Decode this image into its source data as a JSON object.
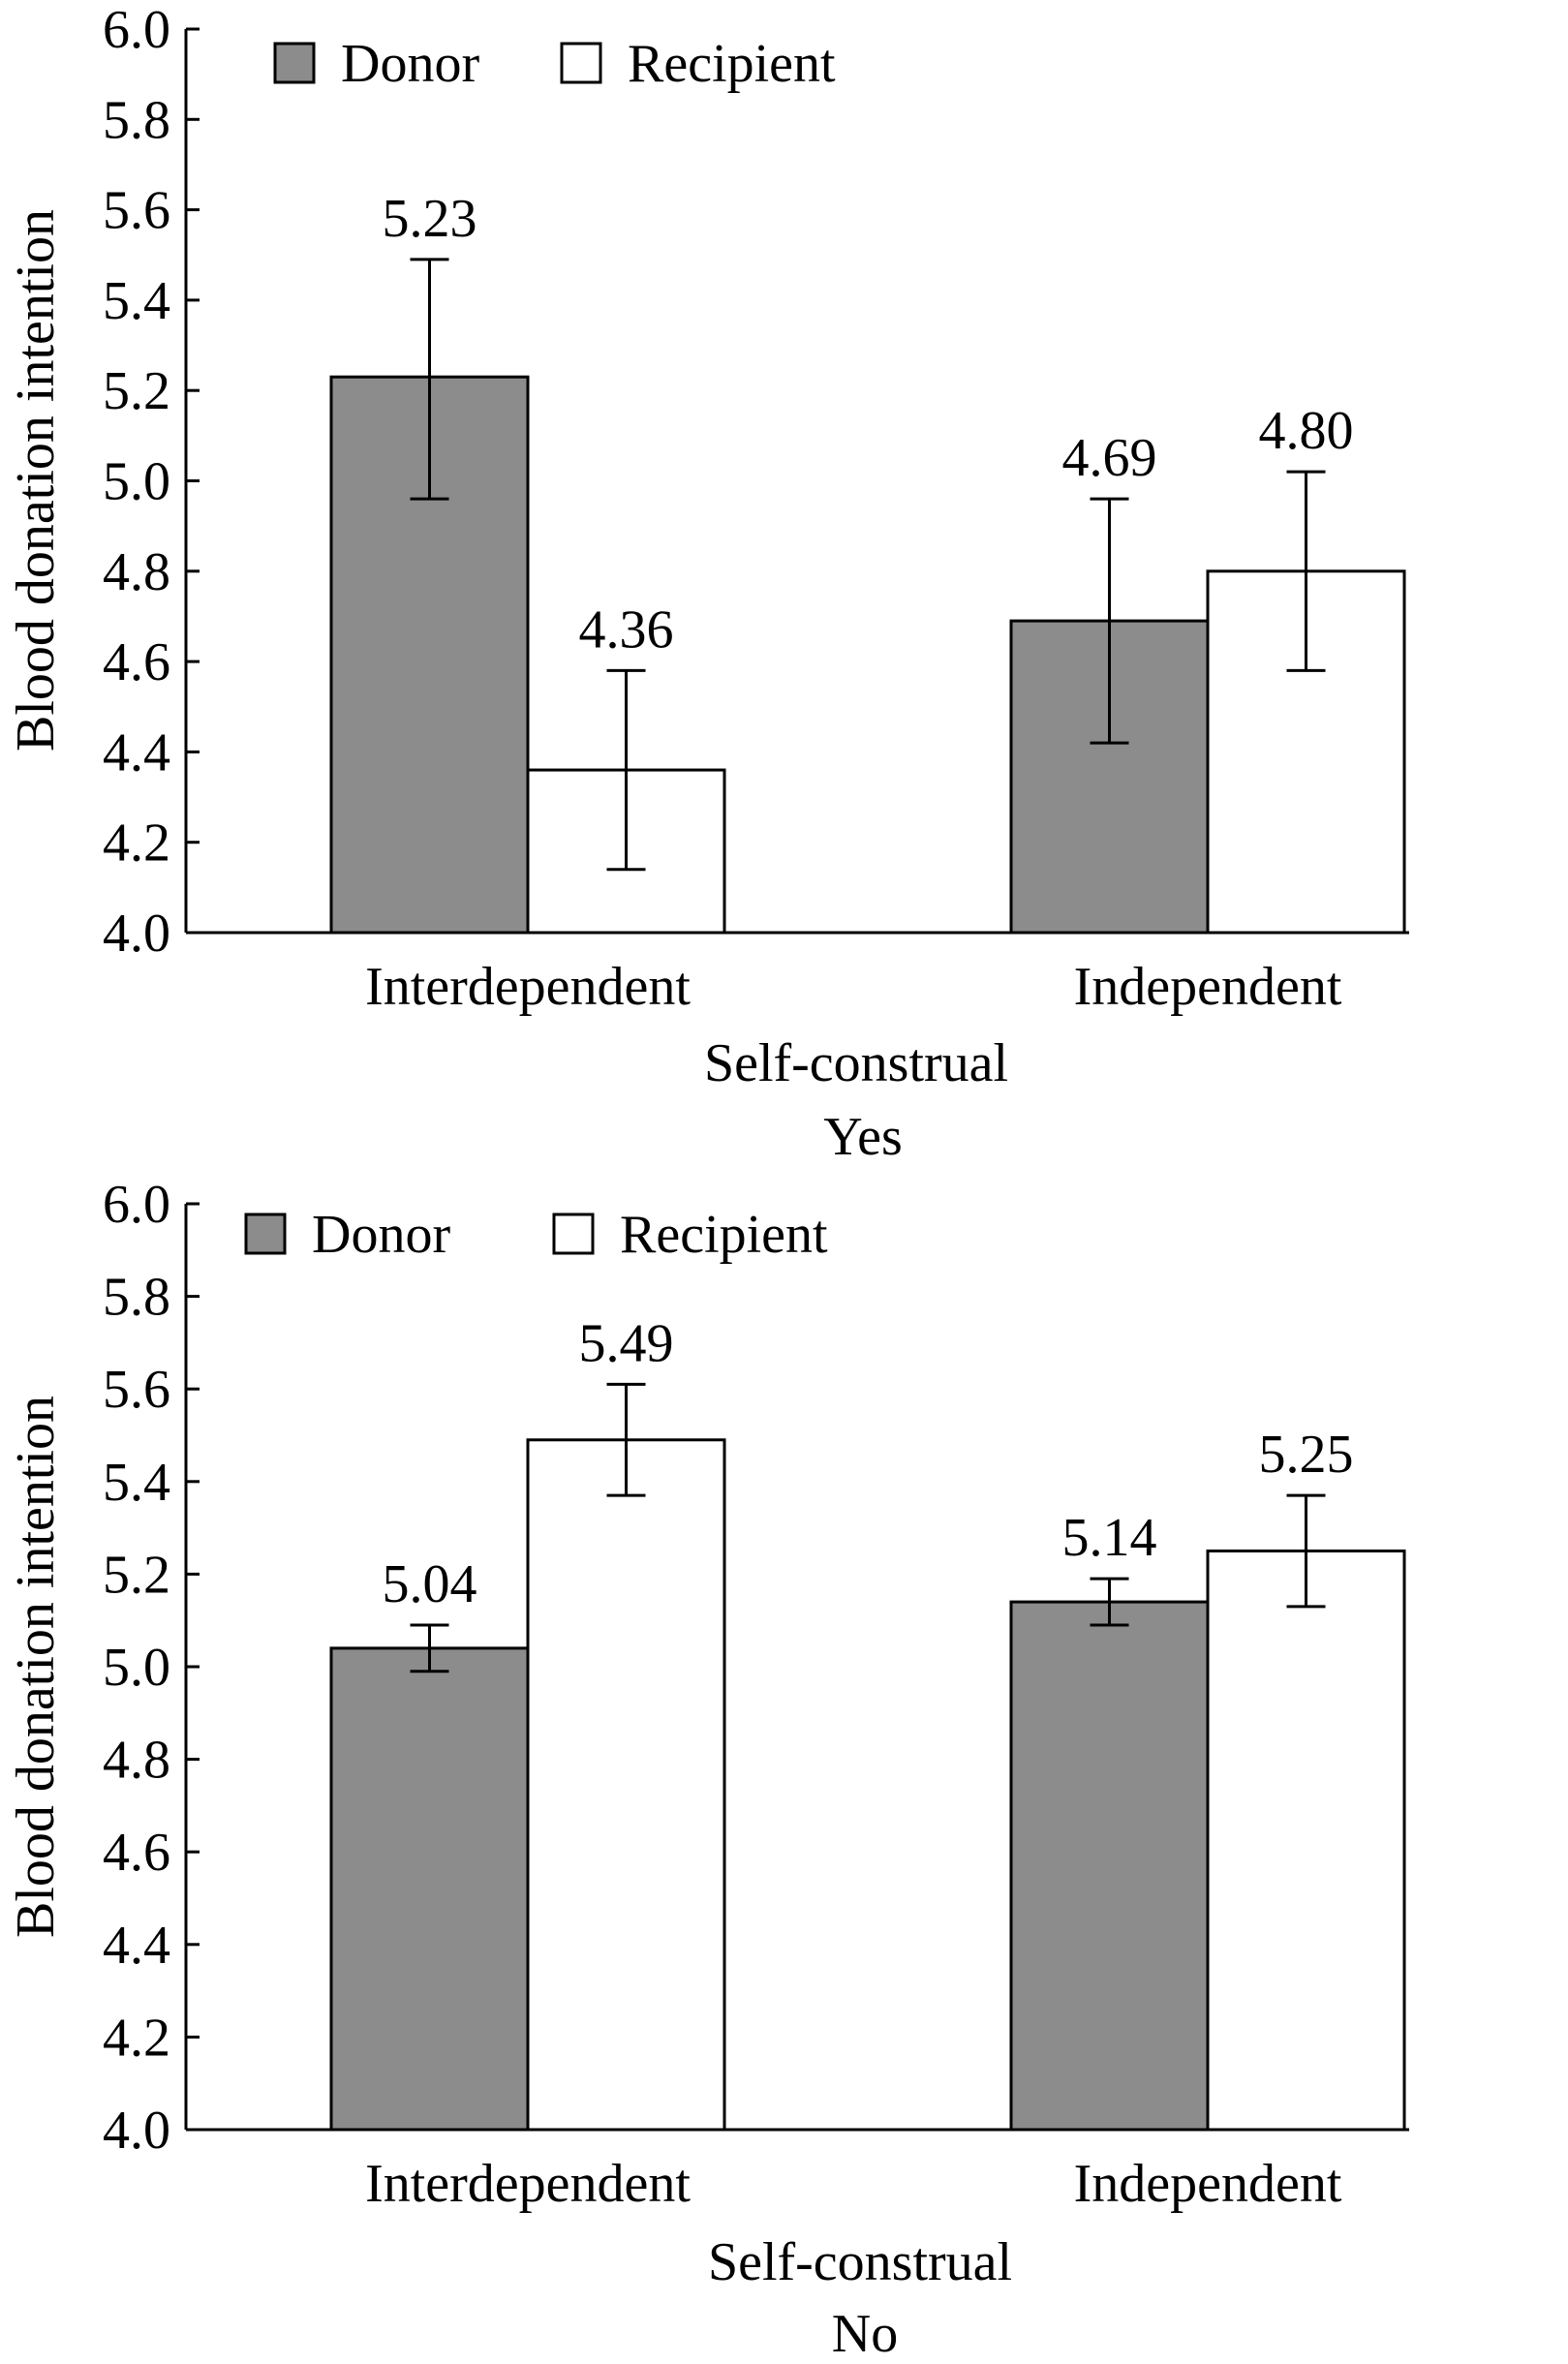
{
  "chart_data": [
    {
      "type": "bar",
      "caption": "Yes",
      "xlabel": "Self-construal",
      "ylabel": "Blood donation intention",
      "ylim": [
        4.0,
        6.0
      ],
      "yticks": [
        "4.0",
        "4.2",
        "4.4",
        "4.6",
        "4.8",
        "5.0",
        "5.2",
        "5.4",
        "5.6",
        "5.8",
        "6.0"
      ],
      "categories": [
        "Interdependent",
        "Independent"
      ],
      "series": [
        {
          "name": "Donor",
          "color": "#8c8c8c",
          "values": [
            5.23,
            4.69
          ],
          "labels": [
            "5.23",
            "4.69"
          ],
          "err_low": [
            4.96,
            4.42
          ],
          "err_high": [
            5.49,
            4.96
          ]
        },
        {
          "name": "Recipient",
          "color": "#ffffff",
          "values": [
            4.36,
            4.8
          ],
          "labels": [
            "4.36",
            "4.80"
          ],
          "err_low": [
            4.14,
            4.58
          ],
          "err_high": [
            4.58,
            5.02
          ]
        }
      ],
      "legend": "top-left"
    },
    {
      "type": "bar",
      "caption": "No",
      "xlabel": "Self-construal",
      "ylabel": "Blood donation intention",
      "ylim": [
        4.0,
        6.0
      ],
      "yticks": [
        "4.0",
        "4.2",
        "4.4",
        "4.6",
        "4.8",
        "5.0",
        "5.2",
        "5.4",
        "5.6",
        "5.8",
        "6.0"
      ],
      "categories": [
        "Interdependent",
        "Independent"
      ],
      "series": [
        {
          "name": "Donor",
          "color": "#8c8c8c",
          "values": [
            5.04,
            5.14
          ],
          "labels": [
            "5.04",
            "5.14"
          ],
          "err_low": [
            4.99,
            5.09
          ],
          "err_high": [
            5.09,
            5.19
          ]
        },
        {
          "name": "Recipient",
          "color": "#ffffff",
          "values": [
            5.49,
            5.25
          ],
          "labels": [
            "5.49",
            "5.25"
          ],
          "err_low": [
            5.37,
            5.13
          ],
          "err_high": [
            5.61,
            5.37
          ]
        }
      ],
      "legend": "top-left"
    }
  ]
}
